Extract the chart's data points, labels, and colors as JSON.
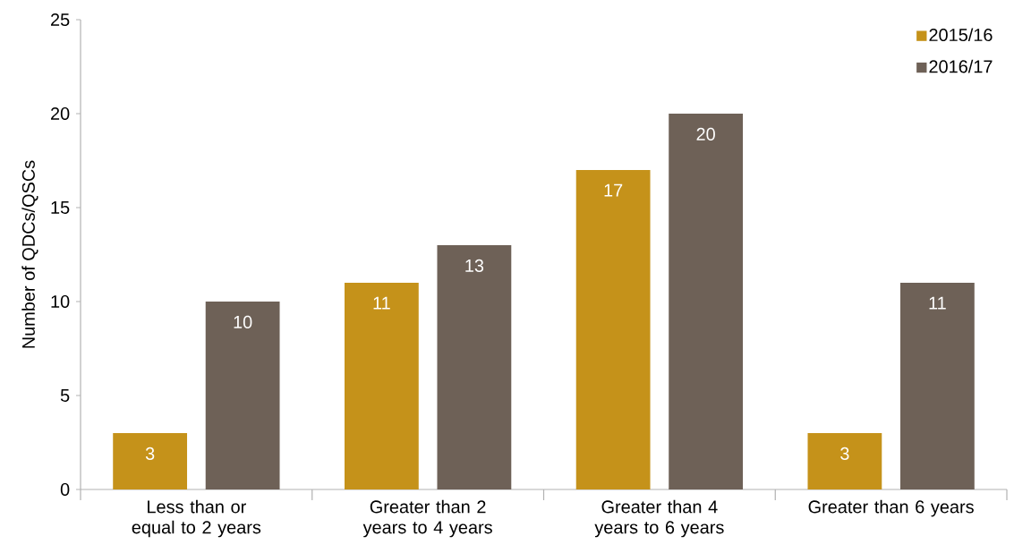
{
  "chart_data": {
    "type": "bar",
    "ylabel": "Number  of QDCs/QSCs",
    "categories": [
      "Less than or equal to 2 years",
      "Greater than 2 years to 4 years",
      "Greater than 4 years to 6 years",
      "Greater than 6 years"
    ],
    "series": [
      {
        "name": "2015/16",
        "color": "#c5921a",
        "values": [
          3,
          11,
          17,
          3
        ]
      },
      {
        "name": "2016/17",
        "color": "#6e6157",
        "values": [
          10,
          13,
          20,
          11
        ]
      }
    ],
    "ylim": [
      0,
      25
    ],
    "yticks": [
      0,
      5,
      10,
      15,
      20,
      25
    ],
    "grid": false,
    "legend": "top right",
    "data_labels": true
  }
}
